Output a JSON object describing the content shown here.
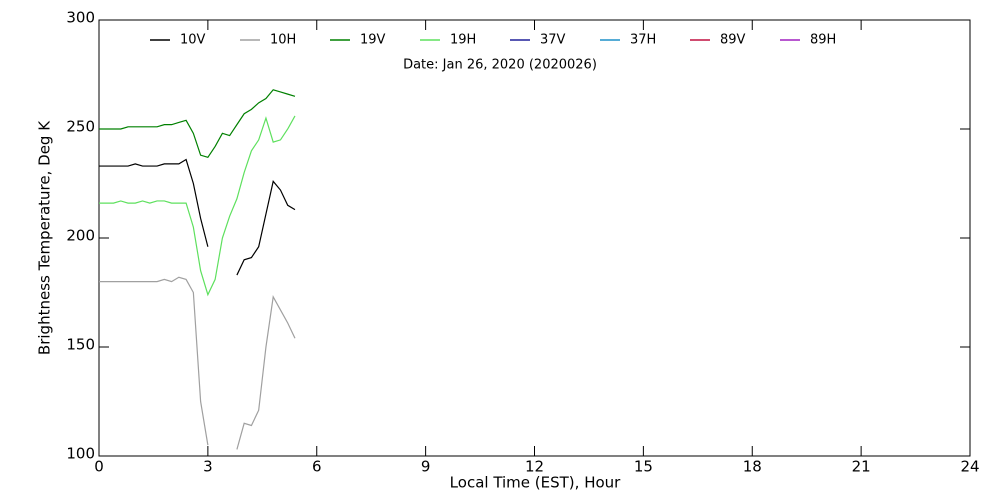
{
  "chart_data": {
    "type": "line",
    "y_label": "Brightness Temperature, Deg K",
    "x_label": "Local Time (EST), Hour",
    "annotation": "Date: Jan 26, 2020 (2020026)",
    "x": [
      0,
      0.2,
      0.4,
      0.6,
      0.8,
      1.0,
      1.2,
      1.4,
      1.6,
      1.8,
      2.0,
      2.2,
      2.4,
      2.6,
      2.8,
      3.0,
      3.2,
      3.4,
      3.6,
      3.8,
      4.0,
      4.2,
      4.4,
      4.6,
      4.8,
      5.0,
      5.2,
      5.4
    ],
    "series": [
      {
        "name": "10V",
        "color": "#000000",
        "values": [
          233,
          233,
          233,
          233,
          233,
          234,
          233,
          233,
          233,
          234,
          234,
          234,
          236,
          225,
          209,
          196,
          null,
          null,
          null,
          183,
          190,
          191,
          196,
          211,
          226,
          222,
          215,
          213
        ]
      },
      {
        "name": "10H",
        "color": "#a0a0a0",
        "values": [
          180,
          180,
          180,
          180,
          180,
          180,
          180,
          180,
          180,
          181,
          180,
          182,
          181,
          175,
          125,
          105,
          null,
          null,
          null,
          103,
          115,
          114,
          121,
          150,
          173,
          167,
          161,
          154
        ]
      },
      {
        "name": "19V",
        "color": "#008000",
        "values": [
          250,
          250,
          250,
          250,
          251,
          251,
          251,
          251,
          251,
          252,
          252,
          253,
          254,
          248,
          238,
          237,
          242,
          248,
          247,
          252,
          257,
          259,
          262,
          264,
          268,
          267,
          266,
          265
        ]
      },
      {
        "name": "19H",
        "color": "#5ee05e",
        "values": [
          216,
          216,
          216,
          217,
          216,
          216,
          217,
          216,
          217,
          217,
          216,
          216,
          216,
          205,
          185,
          174,
          181,
          200,
          210,
          218,
          230,
          240,
          245,
          255,
          244,
          245,
          250,
          256
        ]
      },
      {
        "name": "37V",
        "color": "#20209a",
        "values": [
          null,
          null,
          null,
          null,
          null,
          null,
          null,
          null,
          null,
          null,
          null,
          null,
          null,
          null,
          null,
          null,
          null,
          null,
          null,
          null,
          null,
          null,
          null,
          null,
          null,
          null,
          null,
          null
        ]
      },
      {
        "name": "37H",
        "color": "#1e90c8",
        "values": [
          null,
          null,
          null,
          null,
          null,
          null,
          null,
          null,
          null,
          null,
          null,
          null,
          null,
          null,
          null,
          null,
          null,
          null,
          null,
          null,
          null,
          null,
          null,
          null,
          null,
          null,
          null,
          null
        ]
      },
      {
        "name": "89V",
        "color": "#c01040",
        "values": [
          null,
          null,
          null,
          null,
          null,
          null,
          null,
          null,
          null,
          null,
          null,
          null,
          null,
          null,
          null,
          null,
          null,
          null,
          null,
          null,
          null,
          null,
          null,
          null,
          null,
          null,
          null,
          null
        ]
      },
      {
        "name": "89H",
        "color": "#a020c0",
        "values": [
          null,
          null,
          null,
          null,
          null,
          null,
          null,
          null,
          null,
          null,
          null,
          null,
          null,
          null,
          null,
          null,
          null,
          null,
          null,
          null,
          null,
          null,
          null,
          null,
          null,
          null,
          null,
          null
        ]
      }
    ],
    "xlim": [
      0,
      24
    ],
    "xticks": [
      0,
      3,
      6,
      9,
      12,
      15,
      18,
      21,
      24
    ],
    "ylim": [
      100,
      300
    ],
    "yticks": [
      100,
      150,
      200,
      250,
      300
    ]
  }
}
